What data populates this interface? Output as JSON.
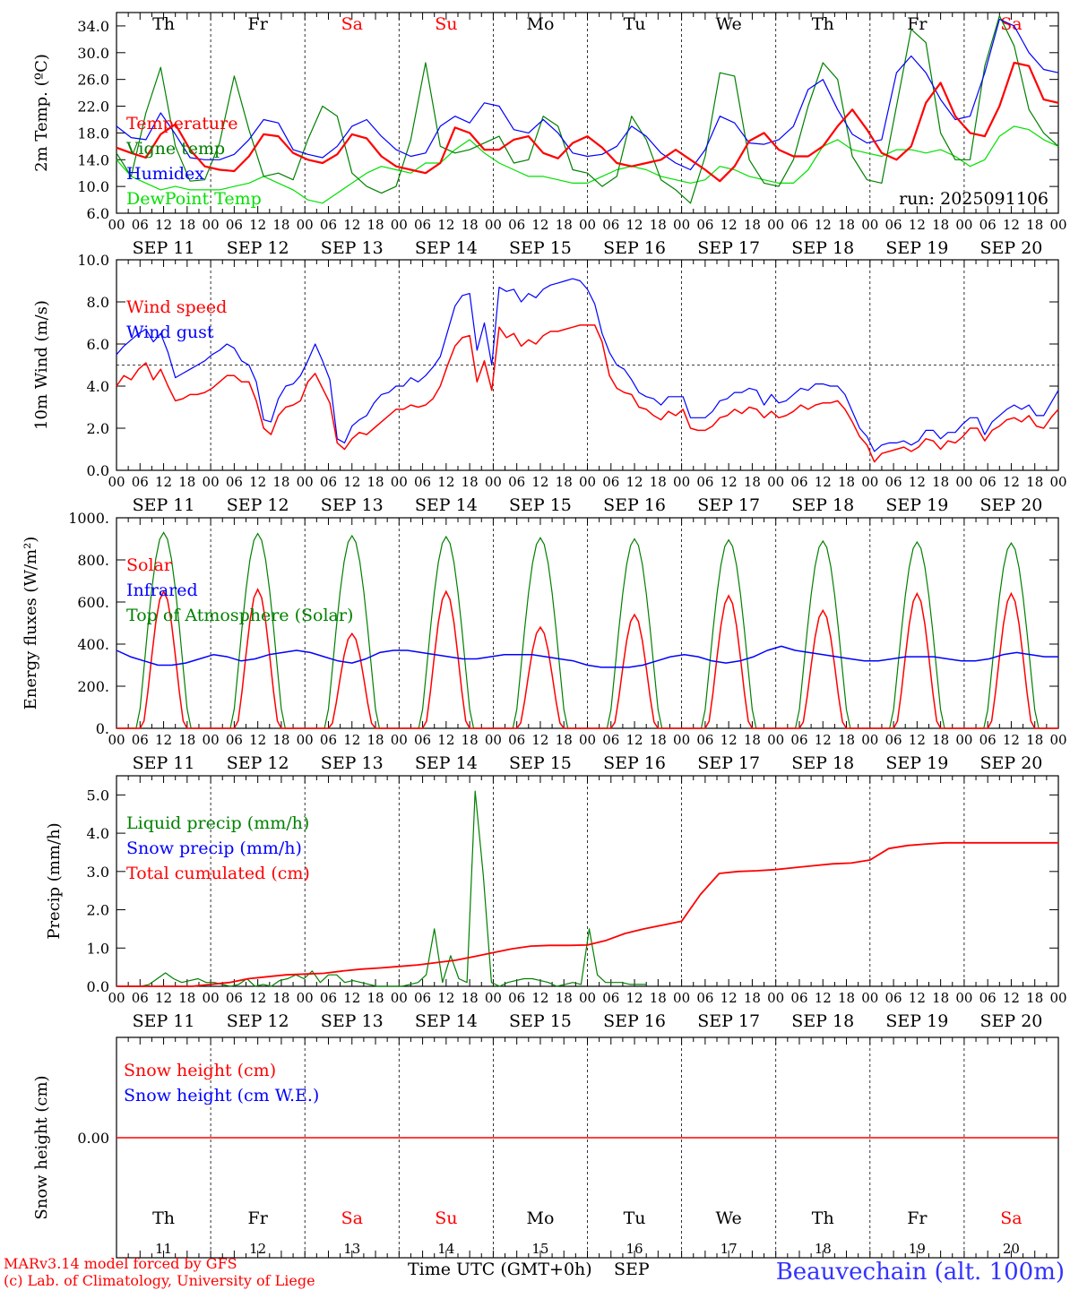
{
  "colors": {
    "red": "#ff0000",
    "green": "#008000",
    "blue": "#0000ff",
    "lightgreen": "#00e000",
    "black": "#000000",
    "weekend": "#ff0000"
  },
  "days": [
    {
      "abbr": "Th",
      "date": "SEP 11",
      "num": "11",
      "weekend": false
    },
    {
      "abbr": "Fr",
      "date": "SEP 12",
      "num": "12",
      "weekend": false
    },
    {
      "abbr": "Sa",
      "date": "SEP 13",
      "num": "13",
      "weekend": true
    },
    {
      "abbr": "Su",
      "date": "SEP 14",
      "num": "14",
      "weekend": true
    },
    {
      "abbr": "Mo",
      "date": "SEP 15",
      "num": "15",
      "weekend": false
    },
    {
      "abbr": "Tu",
      "date": "SEP 16",
      "num": "16",
      "weekend": false
    },
    {
      "abbr": "We",
      "date": "SEP 17",
      "num": "17",
      "weekend": false
    },
    {
      "abbr": "Th",
      "date": "SEP 18",
      "num": "18",
      "weekend": false
    },
    {
      "abbr": "Fr",
      "date": "SEP 19",
      "num": "19",
      "weekend": false
    },
    {
      "abbr": "Sa",
      "date": "SEP 20",
      "num": "20",
      "weekend": true
    }
  ],
  "hour_labels": [
    "00",
    "06",
    "12",
    "18"
  ],
  "final_hour_label": "00",
  "footer": {
    "model": "MARv3.14 model forced by GFS",
    "lab": "(c) Lab. of Climatology, University of Liege",
    "xlabel": "Time UTC (GMT+0h)",
    "month": "SEP",
    "station": "Beauvechain (alt. 100m)"
  },
  "chart_data": [
    {
      "type": "line",
      "ylabel": "2m Temp. (ºC)",
      "ylim": [
        6,
        36
      ],
      "yticks": [
        "6.0",
        "10.0",
        "14.0",
        "18.0",
        "22.0",
        "26.0",
        "30.0",
        "34.0"
      ],
      "ytick_values": [
        6,
        10,
        14,
        18,
        22,
        26,
        30,
        34
      ],
      "annotation": "run: 2025091106",
      "x_hours_step": 6,
      "series": [
        {
          "name": "Temperature",
          "color": "red",
          "values": [
            15.8,
            15,
            14.3,
            17.8,
            19.3,
            15.5,
            13,
            12.5,
            12.3,
            14.5,
            17.8,
            17.5,
            15,
            14,
            13.5,
            14.8,
            17.8,
            17.2,
            14.5,
            13,
            12.5,
            12,
            13.5,
            18.8,
            18,
            15.5,
            15.5,
            17,
            17.5,
            15,
            14.2,
            16.5,
            17.5,
            15.8,
            13.5,
            13,
            13.5,
            14,
            15.5,
            14,
            12.5,
            10.8,
            13,
            16.8,
            18,
            15.5,
            14.5,
            14.5,
            16,
            19,
            21.5,
            18.5,
            15,
            14,
            16,
            22.5,
            25.5,
            20.5,
            18,
            17.5,
            22,
            28.5,
            28,
            23,
            22.5
          ]
        },
        {
          "name": "Vigne temp",
          "color": "green",
          "values": [
            15,
            11.5,
            21,
            27.8,
            16,
            10.8,
            11,
            16.5,
            26.5,
            18.5,
            11.5,
            12,
            11,
            17,
            22,
            20.5,
            12,
            10,
            9,
            10,
            17,
            28.5,
            16,
            15,
            15.5,
            16.5,
            17.5,
            13.5,
            14,
            20.5,
            19,
            12.5,
            12,
            10,
            11.5,
            20.5,
            17,
            11,
            9.5,
            7.5,
            14.5,
            27,
            26.5,
            14,
            10.5,
            10,
            14,
            22,
            28.5,
            26,
            14.5,
            11,
            10.5,
            22,
            33.5,
            31.5,
            18,
            14,
            14,
            28,
            35.5,
            31,
            21.5,
            18,
            16
          ]
        },
        {
          "name": "Humidex",
          "color": "blue",
          "values": [
            19,
            17.3,
            17,
            21,
            17.8,
            14.3,
            14,
            14,
            14.8,
            17,
            20,
            19.5,
            15.5,
            14.8,
            14.3,
            16,
            19,
            20,
            17.5,
            15.5,
            14.5,
            15,
            19,
            20.5,
            19.5,
            22.5,
            22,
            18.5,
            18,
            20,
            18,
            15,
            14.5,
            14.8,
            16,
            19,
            17.5,
            15,
            13.5,
            12.5,
            15.5,
            20.5,
            19.5,
            16.5,
            16.3,
            17,
            19,
            24.5,
            26,
            21.5,
            17.8,
            16.5,
            17,
            27,
            29.5,
            27,
            23,
            20,
            20.5,
            27,
            35,
            34,
            30,
            27.5,
            27
          ]
        },
        {
          "name": "DewPoint Temp",
          "color": "lightgreen",
          "values": [
            14,
            11.5,
            10.5,
            9.5,
            10,
            9.5,
            9.5,
            9.5,
            10,
            10.5,
            11.5,
            10.5,
            9.5,
            8,
            7.5,
            9,
            10.5,
            12,
            13,
            12.5,
            12,
            13.5,
            13.5,
            15.5,
            17,
            15,
            13.5,
            12.5,
            11.5,
            11.5,
            11,
            10.5,
            10.5,
            11.5,
            12.5,
            13,
            12.5,
            11.5,
            11,
            10.5,
            11,
            13,
            12.5,
            11.5,
            11,
            10.5,
            10.5,
            12.5,
            16,
            17,
            15.5,
            15,
            14.5,
            15.5,
            15.5,
            15,
            15.5,
            14.5,
            13,
            14,
            17.5,
            19,
            18.5,
            17,
            16
          ]
        }
      ]
    },
    {
      "type": "line",
      "ylabel": "10m Wind (m/s)",
      "ylim": [
        0,
        10
      ],
      "yticks": [
        "0.0",
        "2.0",
        "4.0",
        "6.0",
        "8.0",
        "10.0"
      ],
      "ytick_values": [
        0,
        2,
        4,
        6,
        8,
        10
      ],
      "reference_line": 5,
      "x_hours_step": 3,
      "series": [
        {
          "name": "Wind speed",
          "color": "red",
          "values": [
            4,
            4.5,
            4.3,
            4.8,
            5.1,
            4.3,
            4.8,
            4.0,
            3.3,
            3.4,
            3.6,
            3.6,
            3.7,
            3.9,
            4.2,
            4.5,
            4.5,
            4.2,
            4.2,
            3.3,
            2.0,
            1.7,
            2.6,
            3.0,
            3.1,
            3.3,
            4.2,
            4.6,
            3.9,
            3.2,
            1.3,
            1.0,
            1.5,
            1.8,
            1.7,
            2.0,
            2.3,
            2.6,
            2.9,
            2.9,
            3.1,
            3.0,
            3.1,
            3.4,
            4.0,
            5.0,
            5.9,
            6.3,
            6.4,
            4.2,
            5.2,
            3.8,
            6.8,
            6.3,
            6.5,
            5.9,
            6.2,
            6.0,
            6.4,
            6.6,
            6.6,
            6.7,
            6.8,
            6.9,
            6.9,
            6.9,
            6.1,
            4.5,
            3.9,
            3.7,
            3.6,
            3.0,
            2.9,
            2.6,
            2.4,
            2.8,
            2.6,
            2.9,
            2.0,
            1.9,
            1.9,
            2.1,
            2.5,
            2.6,
            2.9,
            2.7,
            3.0,
            2.9,
            2.5,
            2.8,
            2.5,
            2.6,
            2.8,
            3.1,
            2.9,
            3.1,
            3.2,
            3.2,
            3.3,
            2.9,
            2.3,
            1.6,
            1.2,
            0.4,
            0.8,
            0.9,
            1.0,
            1.1,
            0.9,
            1.1,
            1.5,
            1.4,
            1.0,
            1.4,
            1.3,
            1.6,
            2.0,
            2.0,
            1.4,
            1.9,
            2.1,
            2.4,
            2.5,
            2.3,
            2.6,
            2.1,
            2.0,
            2.5,
            2.9
          ]
        },
        {
          "name": "Wind gust",
          "color": "blue",
          "values": [
            5.5,
            5.9,
            6.2,
            6.5,
            6.7,
            6.1,
            6.5,
            5.6,
            4.4,
            4.6,
            4.8,
            5.0,
            5.2,
            5.5,
            5.7,
            6.0,
            5.8,
            5.2,
            5.0,
            4.2,
            2.4,
            2.3,
            3.4,
            4.0,
            4.1,
            4.5,
            5.2,
            6.0,
            5.2,
            4.3,
            1.5,
            1.3,
            2.1,
            2.4,
            2.6,
            3.2,
            3.6,
            3.7,
            4.0,
            4.0,
            4.4,
            4.2,
            4.5,
            4.9,
            5.4,
            6.6,
            7.8,
            8.3,
            8.4,
            5.7,
            7.0,
            5.0,
            8.7,
            8.5,
            8.6,
            8.0,
            8.4,
            8.2,
            8.6,
            8.8,
            8.9,
            9.0,
            9.1,
            9.0,
            8.6,
            7.9,
            6.5,
            5.6,
            5.0,
            4.8,
            4.3,
            3.7,
            3.5,
            3.4,
            3.1,
            3.5,
            3.5,
            3.5,
            2.5,
            2.5,
            2.5,
            2.8,
            3.3,
            3.4,
            3.7,
            3.7,
            3.9,
            3.8,
            3.1,
            3.6,
            3.2,
            3.3,
            3.6,
            3.9,
            3.8,
            4.1,
            4.1,
            4.0,
            4.0,
            3.6,
            2.8,
            2.0,
            1.6,
            0.9,
            1.2,
            1.3,
            1.3,
            1.4,
            1.2,
            1.4,
            1.9,
            1.9,
            1.5,
            1.8,
            1.8,
            2.2,
            2.5,
            2.5,
            1.7,
            2.3,
            2.6,
            2.9,
            3.1,
            2.9,
            3.1,
            2.6,
            2.6,
            3.2,
            3.8
          ]
        }
      ]
    },
    {
      "type": "line",
      "ylabel": "Energy fluxes (W/m²)",
      "ylim": [
        0,
        1000
      ],
      "yticks": [
        "0.",
        "200.",
        "400.",
        "600.",
        "800.",
        "1000."
      ],
      "ytick_values": [
        0,
        200,
        400,
        600,
        800,
        1000
      ],
      "series": [
        {
          "name": "Solar",
          "color": "red",
          "day_peaks": [
            650,
            660,
            450,
            650,
            480,
            540,
            630,
            560,
            640,
            640
          ]
        },
        {
          "name": "Infrared",
          "color": "blue",
          "values": [
            370,
            340,
            320,
            300,
            300,
            310,
            330,
            350,
            340,
            320,
            330,
            350,
            360,
            370,
            360,
            340,
            320,
            310,
            330,
            360,
            370,
            370,
            360,
            350,
            340,
            330,
            330,
            340,
            350,
            350,
            350,
            340,
            330,
            320,
            300,
            290,
            290,
            290,
            300,
            320,
            340,
            350,
            340,
            320,
            310,
            320,
            340,
            370,
            390,
            370,
            360,
            350,
            340,
            330,
            320,
            320,
            330,
            340,
            340,
            340,
            330,
            320,
            320,
            330,
            350,
            360,
            350,
            340,
            340
          ]
        },
        {
          "name": "Top of Atmosphere (Solar)",
          "color": "green",
          "day_peaks": [
            930,
            925,
            915,
            910,
            905,
            900,
            895,
            890,
            885,
            880
          ]
        }
      ]
    },
    {
      "type": "line",
      "ylabel": "Precip (mm/h)",
      "ylim": [
        0,
        5.5
      ],
      "yticks": [
        "0.0",
        "1.0",
        "2.0",
        "3.0",
        "4.0",
        "5.0"
      ],
      "ytick_values": [
        0,
        1,
        2,
        3,
        4,
        5
      ],
      "series": [
        {
          "name": "Liquid precip (mm/h)",
          "color": "green",
          "values": [
            0,
            0,
            0,
            0,
            0.05,
            0.2,
            0.35,
            0.2,
            0.1,
            0.15,
            0.2,
            0.1,
            0.1,
            0.05,
            0,
            0.05,
            0.2,
            0,
            0.05,
            0,
            0.15,
            0.2,
            0.3,
            0.2,
            0.4,
            0.1,
            0.3,
            0.3,
            0.1,
            0.15,
            0.1,
            0.05,
            0,
            0,
            0,
            0,
            0.05,
            0.1,
            0.3,
            1.5,
            0.1,
            0.8,
            0.2,
            0.1,
            5.1,
            2.9,
            0.1,
            0,
            0.1,
            0.15,
            0.2,
            0.2,
            0.15,
            0.1,
            0,
            0.05,
            0.1,
            0.05,
            1.5,
            0.3,
            0.1,
            0.1,
            0.1,
            0.05,
            0.05,
            0.05
          ]
        },
        {
          "name": "Snow precip (mm/h)",
          "color": "blue",
          "values": []
        },
        {
          "name": "Total cumulated (cm)",
          "color": "red",
          "values": [
            0,
            0,
            0,
            0,
            0,
            0.05,
            0.1,
            0.2,
            0.25,
            0.3,
            0.32,
            0.34,
            0.4,
            0.45,
            0.48,
            0.52,
            0.56,
            0.62,
            0.68,
            0.78,
            0.88,
            0.98,
            1.05,
            1.07,
            1.07,
            1.08,
            1.2,
            1.38,
            1.5,
            1.6,
            1.7,
            2.4,
            2.95,
            3.0,
            3.02,
            3.05,
            3.1,
            3.15,
            3.2,
            3.22,
            3.3,
            3.6,
            3.68,
            3.72,
            3.75,
            3.75,
            3.75,
            3.75,
            3.75,
            3.75
          ]
        }
      ]
    },
    {
      "type": "line",
      "ylabel": "Snow height (cm)",
      "yticks": [
        "0.00"
      ],
      "series": [
        {
          "name": "Snow height (cm)",
          "color": "red",
          "values": [
            0,
            0
          ]
        },
        {
          "name": "Snow height (cm W.E.)",
          "color": "blue",
          "values": []
        }
      ]
    }
  ]
}
